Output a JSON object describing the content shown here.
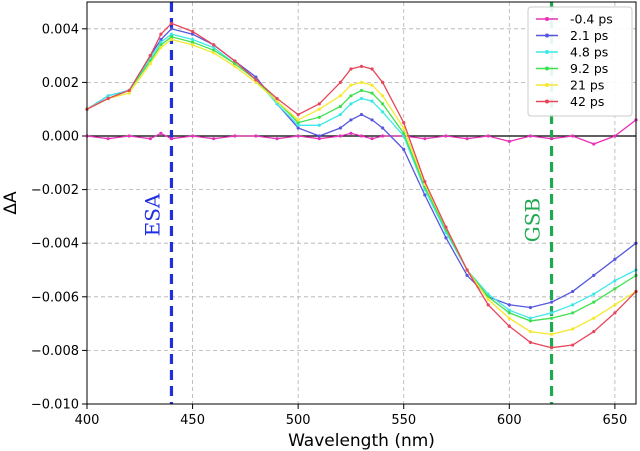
{
  "chart_data": {
    "type": "line",
    "xlabel": "Wavelength (nm)",
    "ylabel": "ΔA",
    "xlim": [
      400,
      660
    ],
    "ylim": [
      -0.01,
      0.005
    ],
    "x_ticks": [
      400,
      450,
      500,
      550,
      600,
      650
    ],
    "x_tick_labels": [
      "400",
      "450",
      "500",
      "550",
      "600",
      "650"
    ],
    "y_ticks": [
      -0.01,
      -0.008,
      -0.006,
      -0.004,
      -0.002,
      0.0,
      0.002,
      0.004
    ],
    "y_tick_labels": [
      "−0.010",
      "−0.008",
      "−0.006",
      "−0.004",
      "−0.002",
      "0.000",
      "0.002",
      "0.004"
    ],
    "grid": true,
    "legend_position": "top-right",
    "x": [
      400,
      410,
      420,
      430,
      435,
      440,
      450,
      460,
      470,
      480,
      490,
      500,
      510,
      520,
      525,
      530,
      535,
      540,
      550,
      560,
      570,
      580,
      590,
      600,
      610,
      620,
      630,
      640,
      650,
      660
    ],
    "series": [
      {
        "name": "-0.4 ps",
        "color": "#e831b8",
        "values": [
          0.0,
          -0.0001,
          0.0,
          -0.0001,
          0.0001,
          -0.0001,
          0.0,
          -0.0001,
          0.0,
          0.0,
          -0.0001,
          0.0,
          -0.0001,
          0.0,
          0.0001,
          0.0,
          -0.0001,
          0.0,
          0.0,
          -0.0001,
          0.0,
          -0.0001,
          0.0,
          -0.0002,
          0.0,
          -0.0001,
          0.0,
          -0.0003,
          0.0,
          0.0006
        ]
      },
      {
        "name": "2.1 ps",
        "color": "#5656e0",
        "values": [
          0.001,
          0.0015,
          0.0017,
          0.003,
          0.0036,
          0.004,
          0.0038,
          0.0034,
          0.0028,
          0.0022,
          0.0012,
          0.0003,
          0.0,
          0.0003,
          0.0006,
          0.0008,
          0.0006,
          0.0003,
          -0.0005,
          -0.0022,
          -0.0038,
          -0.0052,
          -0.006,
          -0.0063,
          -0.0064,
          -0.0062,
          -0.0058,
          -0.0052,
          -0.0046,
          -0.004
        ]
      },
      {
        "name": "4.8 ps",
        "color": "#3fe8e8",
        "values": [
          0.001,
          0.0015,
          0.0017,
          0.0029,
          0.0035,
          0.0038,
          0.0036,
          0.0033,
          0.0027,
          0.0021,
          0.0012,
          0.0004,
          0.0004,
          0.0008,
          0.0012,
          0.0014,
          0.0013,
          0.0009,
          0.0,
          -0.002,
          -0.0036,
          -0.005,
          -0.0059,
          -0.0065,
          -0.0068,
          -0.0066,
          -0.0063,
          -0.0059,
          -0.0054,
          -0.005
        ]
      },
      {
        "name": "9.2 ps",
        "color": "#3fe04f",
        "values": [
          0.001,
          0.0014,
          0.0017,
          0.0028,
          0.0034,
          0.0037,
          0.0035,
          0.0032,
          0.0027,
          0.0021,
          0.0013,
          0.0005,
          0.0007,
          0.0011,
          0.0015,
          0.0017,
          0.0016,
          0.0012,
          0.0001,
          -0.0019,
          -0.0035,
          -0.005,
          -0.006,
          -0.0066,
          -0.0069,
          -0.0068,
          -0.0066,
          -0.0062,
          -0.0057,
          -0.0052
        ]
      },
      {
        "name": "21 ps",
        "color": "#f5e830",
        "values": [
          0.001,
          0.0014,
          0.0016,
          0.0027,
          0.0033,
          0.0036,
          0.0034,
          0.0031,
          0.0026,
          0.002,
          0.0013,
          0.0006,
          0.001,
          0.0015,
          0.0019,
          0.002,
          0.0019,
          0.0015,
          0.0003,
          -0.0018,
          -0.0034,
          -0.005,
          -0.0061,
          -0.0068,
          -0.0073,
          -0.0074,
          -0.0072,
          -0.0068,
          -0.0063,
          -0.0058
        ]
      },
      {
        "name": "42 ps",
        "color": "#e8465a",
        "values": [
          0.001,
          0.0014,
          0.0017,
          0.003,
          0.0038,
          0.0042,
          0.0039,
          0.0034,
          0.0028,
          0.0021,
          0.0014,
          0.0008,
          0.0012,
          0.002,
          0.0025,
          0.0026,
          0.0025,
          0.002,
          0.0005,
          -0.0017,
          -0.0034,
          -0.005,
          -0.0063,
          -0.0071,
          -0.0077,
          -0.0079,
          -0.0078,
          -0.0073,
          -0.0066,
          -0.0058
        ]
      }
    ],
    "reference_lines": [
      {
        "name": "esa-line",
        "x": 440,
        "label": "ESA",
        "color": "#1f2ee0"
      },
      {
        "name": "gsb-line",
        "x": 620,
        "label": "GSB",
        "color": "#1fa84f"
      }
    ]
  }
}
